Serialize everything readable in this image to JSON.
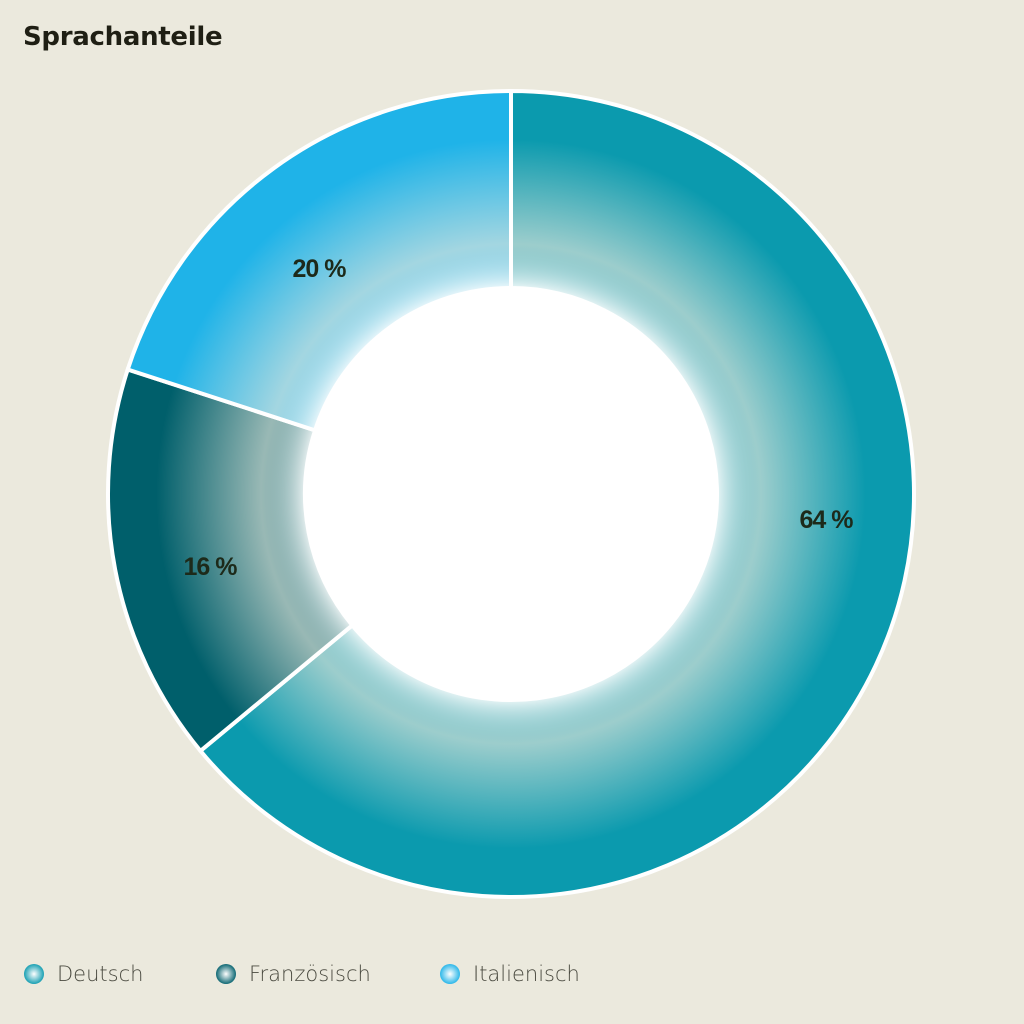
{
  "chart_data": {
    "type": "pie",
    "variant": "donut",
    "title": "Sprachanteile",
    "categories": [
      "Deutsch",
      "Französisch",
      "Italienisch"
    ],
    "values": [
      64,
      16,
      20
    ],
    "data_labels": [
      "64 %",
      "16 %",
      "20 %"
    ],
    "colors": [
      "#0b9aae",
      "#005f6b",
      "#1fb3e8"
    ],
    "start": "top",
    "direction": "clockwise",
    "legend_position": "bottom-left"
  }
}
